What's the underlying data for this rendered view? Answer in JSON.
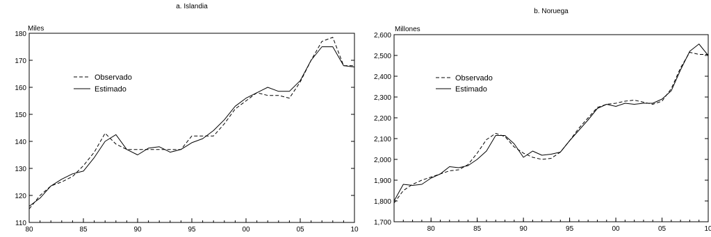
{
  "chart_data": [
    {
      "type": "line",
      "title": "a. Islandia",
      "unit_label": "Miles",
      "xlabel": "",
      "ylabel": "",
      "xlim": [
        1980,
        2010
      ],
      "ylim": [
        110,
        180
      ],
      "x_ticks": [
        1980,
        1985,
        1990,
        1995,
        2000,
        2005,
        2010
      ],
      "x_tick_labels": [
        "80",
        "85",
        "90",
        "95",
        "00",
        "05",
        "10"
      ],
      "y_ticks": [
        110,
        120,
        130,
        140,
        150,
        160,
        170,
        180
      ],
      "y_tick_labels": [
        "110",
        "120",
        "130",
        "140",
        "150",
        "160",
        "170",
        "180"
      ],
      "grid": false,
      "legend_position": "upper-left",
      "series": [
        {
          "name": "Observado",
          "style": "dashed",
          "x": [
            1980,
            1981,
            1982,
            1983,
            1984,
            1985,
            1986,
            1987,
            1988,
            1989,
            1990,
            1991,
            1992,
            1993,
            1994,
            1995,
            1996,
            1997,
            1998,
            1999,
            2000,
            2001,
            2002,
            2003,
            2004,
            2005,
            2006,
            2007,
            2008,
            2009,
            2010
          ],
          "values": [
            115,
            120,
            123.5,
            125,
            127,
            131,
            136,
            143,
            139,
            137,
            137,
            137,
            137,
            137,
            137,
            142,
            142,
            142,
            146.5,
            152,
            155,
            158,
            157,
            157,
            156,
            162,
            170,
            177,
            178.5,
            168,
            168
          ]
        },
        {
          "name": "Estimado",
          "style": "solid",
          "x": [
            1980,
            1981,
            1982,
            1983,
            1984,
            1985,
            1986,
            1987,
            1988,
            1989,
            1990,
            1991,
            1992,
            1993,
            1994,
            1995,
            1996,
            1997,
            1998,
            1999,
            2000,
            2001,
            2002,
            2003,
            2004,
            2005,
            2006,
            2007,
            2008,
            2009,
            2010
          ],
          "values": [
            116,
            119,
            123.5,
            126,
            128,
            129,
            134,
            140,
            142.5,
            137,
            135,
            137.5,
            138,
            136,
            137,
            139.5,
            141,
            144,
            148,
            153,
            156,
            158,
            160,
            158.5,
            158.5,
            162.5,
            170,
            175,
            175,
            168,
            167.5
          ]
        }
      ]
    },
    {
      "type": "line",
      "title": "b. Noruega",
      "unit_label": "Millones",
      "xlabel": "",
      "ylabel": "",
      "xlim": [
        1976,
        2010
      ],
      "ylim": [
        1700,
        2600
      ],
      "x_ticks": [
        1980,
        1985,
        1990,
        1995,
        2000,
        2005,
        2010
      ],
      "x_tick_labels": [
        "80",
        "85",
        "90",
        "95",
        "00",
        "05",
        "10"
      ],
      "y_ticks": [
        1700,
        1800,
        1900,
        2000,
        2100,
        2200,
        2300,
        2400,
        2500,
        2600
      ],
      "y_tick_labels": [
        "1,700",
        "1,800",
        "1,900",
        "2,000",
        "2,100",
        "2,200",
        "2,300",
        "2,400",
        "2,500",
        "2,600"
      ],
      "grid": false,
      "legend_position": "upper-left",
      "series": [
        {
          "name": "Observado",
          "style": "dashed",
          "x": [
            1976,
            1977,
            1978,
            1979,
            1980,
            1981,
            1982,
            1983,
            1984,
            1985,
            1986,
            1987,
            1988,
            1989,
            1990,
            1991,
            1992,
            1993,
            1994,
            1995,
            1996,
            1997,
            1998,
            1999,
            2000,
            2001,
            2002,
            2003,
            2004,
            2005,
            2006,
            2007,
            2008,
            2009,
            2010
          ],
          "values": [
            1790,
            1850,
            1880,
            1900,
            1915,
            1930,
            1945,
            1950,
            1975,
            2030,
            2095,
            2125,
            2110,
            2060,
            2030,
            2010,
            2000,
            2005,
            2035,
            2090,
            2150,
            2200,
            2250,
            2265,
            2270,
            2280,
            2285,
            2275,
            2265,
            2280,
            2340,
            2440,
            2515,
            2505,
            2505
          ]
        },
        {
          "name": "Estimado",
          "style": "solid",
          "x": [
            1976,
            1977,
            1978,
            1979,
            1980,
            1981,
            1982,
            1983,
            1984,
            1985,
            1986,
            1987,
            1988,
            1989,
            1990,
            1991,
            1992,
            1993,
            1994,
            1995,
            1996,
            1997,
            1998,
            1999,
            2000,
            2001,
            2002,
            2003,
            2004,
            2005,
            2006,
            2007,
            2008,
            2009,
            2010
          ],
          "values": [
            1800,
            1880,
            1875,
            1880,
            1910,
            1930,
            1965,
            1960,
            1970,
            2000,
            2040,
            2115,
            2115,
            2075,
            2010,
            2040,
            2020,
            2025,
            2035,
            2090,
            2140,
            2190,
            2245,
            2265,
            2255,
            2270,
            2265,
            2270,
            2270,
            2290,
            2330,
            2430,
            2520,
            2555,
            2500
          ]
        }
      ]
    }
  ]
}
